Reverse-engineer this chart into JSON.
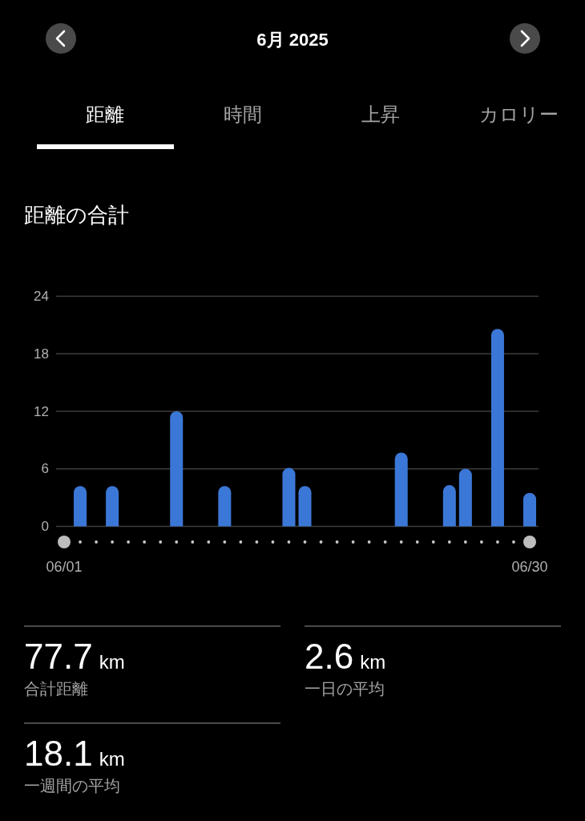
{
  "chart_data": [
    {
      "type": "other",
      "title": "6月 2025",
      "annotations": [
        "距離",
        "時間",
        "上昇",
        "カロリー"
      ]
    },
    {
      "type": "bar",
      "title": "距離の合計",
      "categories": [
        "06/01",
        null,
        null,
        null,
        null,
        null,
        null,
        null,
        null,
        null,
        null,
        null,
        null,
        null,
        null,
        null,
        null,
        null,
        null,
        null,
        null,
        null,
        null,
        null,
        null,
        null,
        null,
        null,
        null,
        "06/30"
      ],
      "values": [
        0,
        4.2,
        0,
        4.2,
        0,
        0,
        0,
        12.0,
        0,
        0,
        4.2,
        0,
        0,
        0,
        6.1,
        4.2,
        0,
        0,
        0,
        0,
        0,
        7.7,
        0,
        0,
        4.3,
        6.0,
        0,
        20.6,
        0,
        3.5
      ],
      "color": "#3b77d6",
      "ylim": [
        0,
        24
      ],
      "yticks": [
        0,
        6,
        12,
        18,
        24
      ],
      "grid": "y"
    },
    {
      "type": "other",
      "annotations": [
        "77.7 km",
        "合計距離",
        "2.6 km",
        "一日の平均",
        "18.1 km",
        "一週間の平均"
      ]
    }
  ]
}
